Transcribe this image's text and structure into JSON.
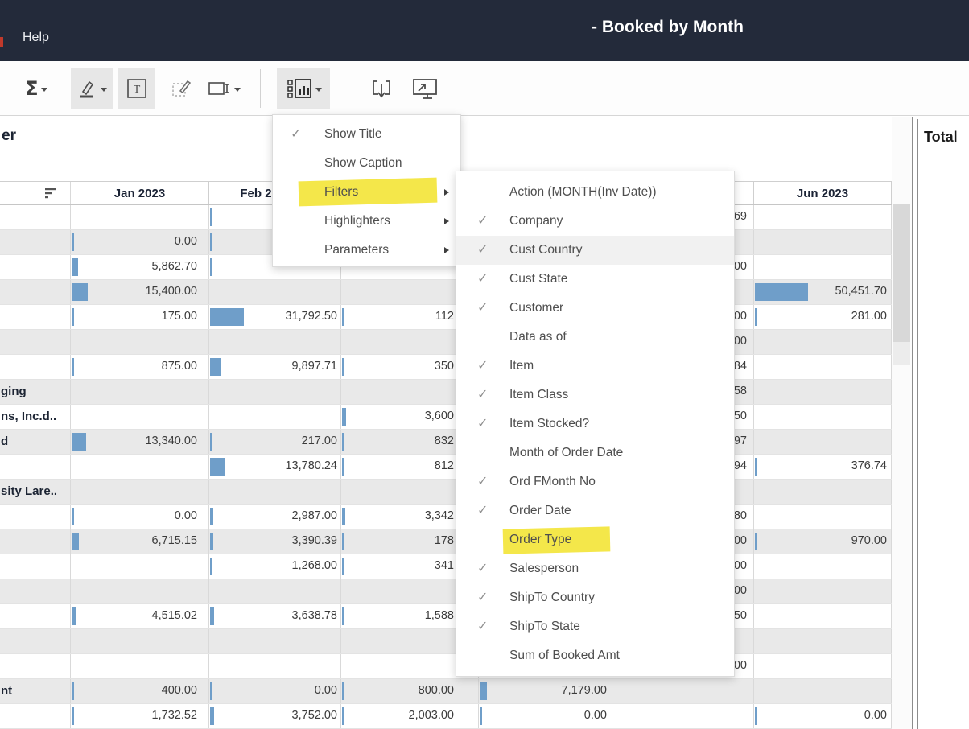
{
  "topbar": {
    "help_label": "Help",
    "title": "- Booked by Month"
  },
  "toolbar": {
    "sigma_glyph": "Σ",
    "text_glyph": "T",
    "buttons": [
      "totals",
      "highlight-pen",
      "text-label",
      "annotate",
      "fit-axis",
      "show-hide-cards",
      "download",
      "presentation-mode"
    ]
  },
  "colors": {
    "accent_highlight": "#f2e431",
    "bar_blue": "#6f9ec9",
    "topbar_bg": "#232a3a",
    "row_band": "#e9e9e9"
  },
  "worksheet": {
    "title_fragment": "er",
    "right_panel_title": "Total"
  },
  "menu": {
    "items": [
      {
        "label": "Show Title",
        "checked": true,
        "submenu": false,
        "highlighted": false
      },
      {
        "label": "Show Caption",
        "checked": false,
        "submenu": false,
        "highlighted": false
      },
      {
        "label": "Filters",
        "checked": false,
        "submenu": true,
        "highlighted": true
      },
      {
        "label": "Highlighters",
        "checked": false,
        "submenu": true,
        "highlighted": false
      },
      {
        "label": "Parameters",
        "checked": false,
        "submenu": true,
        "highlighted": false
      }
    ]
  },
  "submenu": {
    "items": [
      {
        "label": "Action (MONTH(Inv Date))",
        "checked": false,
        "hover": false,
        "highlighted": false
      },
      {
        "label": "Company",
        "checked": true,
        "hover": false,
        "highlighted": false
      },
      {
        "label": "Cust Country",
        "checked": true,
        "hover": true,
        "highlighted": false
      },
      {
        "label": "Cust State",
        "checked": true,
        "hover": false,
        "highlighted": false
      },
      {
        "label": "Customer",
        "checked": true,
        "hover": false,
        "highlighted": false
      },
      {
        "label": "Data as of",
        "checked": false,
        "hover": false,
        "highlighted": false
      },
      {
        "label": "Item",
        "checked": true,
        "hover": false,
        "highlighted": false
      },
      {
        "label": "Item Class",
        "checked": true,
        "hover": false,
        "highlighted": false
      },
      {
        "label": "Item Stocked?",
        "checked": true,
        "hover": false,
        "highlighted": false
      },
      {
        "label": "Month of Order Date",
        "checked": false,
        "hover": false,
        "highlighted": false
      },
      {
        "label": "Ord FMonth No",
        "checked": true,
        "hover": false,
        "highlighted": false
      },
      {
        "label": "Order Date",
        "checked": true,
        "hover": false,
        "highlighted": false
      },
      {
        "label": "Order Type",
        "checked": false,
        "hover": false,
        "highlighted": true
      },
      {
        "label": "Salesperson",
        "checked": true,
        "hover": false,
        "highlighted": false
      },
      {
        "label": "ShipTo Country",
        "checked": true,
        "hover": false,
        "highlighted": false
      },
      {
        "label": "ShipTo State",
        "checked": true,
        "hover": false,
        "highlighted": false
      },
      {
        "label": "Sum of Booked Amt",
        "checked": false,
        "hover": false,
        "highlighted": false
      }
    ]
  },
  "table": {
    "columns": [
      "Jan 2023",
      "Feb 2023",
      "",
      "",
      "",
      "Jun 2023"
    ],
    "rows": [
      {
        "label": "",
        "band": false,
        "cells": [
          null,
          {
            "tick": true
          },
          null,
          null,
          {
            "v": "69",
            "bar": 0
          },
          null
        ]
      },
      {
        "label": "",
        "band": true,
        "cells": [
          {
            "v": "0.00"
          },
          {
            "tick": true
          },
          null,
          null,
          null,
          null
        ]
      },
      {
        "label": "",
        "band": false,
        "cells": [
          {
            "v": "5,862.70"
          },
          {
            "tick": true
          },
          null,
          null,
          {
            "v": "00",
            "bar": 0
          },
          null
        ]
      },
      {
        "label": "",
        "band": true,
        "cells": [
          {
            "v": "15,400.00"
          },
          null,
          null,
          null,
          null,
          {
            "v": "50,451.70"
          }
        ]
      },
      {
        "label": "",
        "band": false,
        "cells": [
          {
            "v": "175.00"
          },
          {
            "v": "31,792.50"
          },
          {
            "v": "112"
          },
          null,
          {
            "v": "00",
            "bar": 0
          },
          {
            "v": "281.00"
          }
        ]
      },
      {
        "label": "",
        "band": true,
        "cells": [
          null,
          null,
          null,
          null,
          {
            "v": "00",
            "bar": 0
          },
          null
        ]
      },
      {
        "label": "",
        "band": false,
        "cells": [
          {
            "v": "875.00"
          },
          {
            "v": "9,897.71"
          },
          {
            "v": "350"
          },
          null,
          {
            "v": "84",
            "bar": 0
          },
          null
        ]
      },
      {
        "label": "ging",
        "band": true,
        "cells": [
          null,
          null,
          null,
          null,
          {
            "v": "58",
            "bar": 0
          },
          null
        ]
      },
      {
        "label": "ns, Inc.d..",
        "band": false,
        "cells": [
          null,
          null,
          {
            "v": "3,600"
          },
          null,
          {
            "v": "50",
            "bar": 0
          },
          null
        ]
      },
      {
        "label": "d",
        "band": true,
        "cells": [
          {
            "v": "13,340.00"
          },
          {
            "v": "217.00"
          },
          {
            "v": "832"
          },
          null,
          {
            "v": "97",
            "bar": 0
          },
          null
        ]
      },
      {
        "label": "",
        "band": false,
        "cells": [
          null,
          {
            "v": "13,780.24"
          },
          {
            "v": "812"
          },
          null,
          {
            "v": "94",
            "bar": 0
          },
          {
            "v": "376.74"
          }
        ]
      },
      {
        "label": "sity Lare..",
        "band": true,
        "cells": [
          null,
          null,
          null,
          null,
          null,
          null
        ]
      },
      {
        "label": "",
        "band": false,
        "cells": [
          {
            "v": "0.00"
          },
          {
            "v": "2,987.00"
          },
          {
            "v": "3,342"
          },
          null,
          {
            "v": "80",
            "bar": 0
          },
          null
        ]
      },
      {
        "label": "",
        "band": true,
        "cells": [
          {
            "v": "6,715.15"
          },
          {
            "v": "3,390.39"
          },
          {
            "v": "178"
          },
          null,
          {
            "v": "00",
            "bar": 0
          },
          {
            "v": "970.00"
          }
        ]
      },
      {
        "label": "",
        "band": false,
        "cells": [
          null,
          {
            "v": "1,268.00"
          },
          {
            "v": "341"
          },
          null,
          {
            "v": "00",
            "bar": 0
          },
          null
        ]
      },
      {
        "label": "",
        "band": true,
        "cells": [
          null,
          null,
          null,
          null,
          {
            "v": "00",
            "bar": 0
          },
          null
        ]
      },
      {
        "label": "",
        "band": false,
        "cells": [
          {
            "v": "4,515.02"
          },
          {
            "v": "3,638.78"
          },
          {
            "v": "1,588"
          },
          null,
          {
            "v": "50",
            "bar": 0
          },
          null
        ]
      },
      {
        "label": "",
        "band": true,
        "cells": [
          null,
          null,
          null,
          null,
          null,
          null
        ]
      },
      {
        "label": "",
        "band": false,
        "cells": [
          null,
          null,
          null,
          null,
          {
            "v": "00",
            "bar": 0
          },
          null
        ]
      },
      {
        "label": "nt",
        "band": true,
        "cells": [
          {
            "v": "400.00"
          },
          {
            "v": "0.00"
          },
          {
            "v": "800.00"
          },
          {
            "v": "7,179.00"
          },
          null,
          null
        ]
      },
      {
        "label": "",
        "band": false,
        "cells": [
          {
            "v": "1,732.52"
          },
          {
            "v": "3,752.00"
          },
          {
            "v": "2,003.00"
          },
          {
            "v": "0.00"
          },
          null,
          {
            "v": "0.00"
          }
        ]
      }
    ]
  }
}
